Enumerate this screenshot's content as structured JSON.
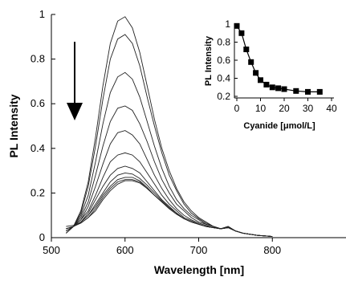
{
  "chart_data": [
    {
      "type": "line",
      "xlabel": "Wavelength [nm]",
      "ylabel": "PL Intensity",
      "xlim": [
        500,
        900
      ],
      "ylim": [
        0,
        1
      ],
      "x_ticks": [
        "500",
        "600",
        "700",
        "800"
      ],
      "y_ticks": [
        "0",
        "0.2",
        "0.4",
        "0.6",
        "0.8",
        "1"
      ],
      "annotation": "downward arrow indicating decreasing intensity with added cyanide",
      "x": [
        520,
        530,
        540,
        550,
        560,
        570,
        580,
        590,
        600,
        610,
        620,
        630,
        640,
        650,
        660,
        670,
        680,
        690,
        700,
        710,
        720,
        730,
        740,
        750,
        760,
        770,
        780,
        790,
        800
      ],
      "series": [
        {
          "values": [
            0.02,
            0.05,
            0.12,
            0.25,
            0.45,
            0.68,
            0.87,
            0.97,
            0.99,
            0.94,
            0.83,
            0.68,
            0.53,
            0.4,
            0.3,
            0.22,
            0.16,
            0.12,
            0.09,
            0.07,
            0.05,
            0.04,
            0.05,
            0.03,
            0.02,
            0.015,
            0.01,
            0.008,
            0.005
          ]
        },
        {
          "values": [
            0.02,
            0.05,
            0.11,
            0.23,
            0.41,
            0.62,
            0.8,
            0.89,
            0.91,
            0.87,
            0.77,
            0.63,
            0.5,
            0.38,
            0.28,
            0.21,
            0.15,
            0.11,
            0.085,
            0.065,
            0.05,
            0.04,
            0.05,
            0.03,
            0.02,
            0.015,
            0.01,
            0.008,
            0.005
          ]
        },
        {
          "values": [
            0.02,
            0.05,
            0.1,
            0.19,
            0.34,
            0.51,
            0.65,
            0.72,
            0.74,
            0.71,
            0.63,
            0.52,
            0.41,
            0.31,
            0.23,
            0.17,
            0.13,
            0.1,
            0.08,
            0.06,
            0.05,
            0.04,
            0.05,
            0.03,
            0.02,
            0.015,
            0.01,
            0.008,
            0.005
          ]
        },
        {
          "values": [
            0.03,
            0.05,
            0.09,
            0.16,
            0.28,
            0.41,
            0.52,
            0.58,
            0.59,
            0.57,
            0.51,
            0.43,
            0.34,
            0.26,
            0.2,
            0.15,
            0.12,
            0.09,
            0.07,
            0.06,
            0.05,
            0.04,
            0.05,
            0.03,
            0.02,
            0.015,
            0.01,
            0.008,
            0.005
          ]
        },
        {
          "values": [
            0.03,
            0.05,
            0.08,
            0.14,
            0.23,
            0.33,
            0.42,
            0.47,
            0.48,
            0.46,
            0.42,
            0.35,
            0.28,
            0.22,
            0.17,
            0.13,
            0.1,
            0.08,
            0.065,
            0.055,
            0.045,
            0.04,
            0.045,
            0.03,
            0.02,
            0.015,
            0.01,
            0.008,
            0.005
          ]
        },
        {
          "values": [
            0.03,
            0.05,
            0.08,
            0.12,
            0.19,
            0.27,
            0.34,
            0.37,
            0.38,
            0.37,
            0.34,
            0.29,
            0.24,
            0.19,
            0.15,
            0.12,
            0.09,
            0.075,
            0.06,
            0.05,
            0.045,
            0.04,
            0.045,
            0.03,
            0.02,
            0.015,
            0.01,
            0.008,
            0.005
          ]
        },
        {
          "values": [
            0.04,
            0.05,
            0.07,
            0.11,
            0.17,
            0.23,
            0.28,
            0.31,
            0.32,
            0.31,
            0.29,
            0.25,
            0.21,
            0.17,
            0.14,
            0.11,
            0.085,
            0.07,
            0.06,
            0.05,
            0.045,
            0.04,
            0.045,
            0.03,
            0.02,
            0.015,
            0.01,
            0.008,
            0.005
          ]
        },
        {
          "values": [
            0.04,
            0.05,
            0.07,
            0.1,
            0.15,
            0.2,
            0.25,
            0.28,
            0.29,
            0.285,
            0.265,
            0.235,
            0.2,
            0.165,
            0.135,
            0.11,
            0.085,
            0.07,
            0.06,
            0.05,
            0.045,
            0.04,
            0.045,
            0.03,
            0.02,
            0.015,
            0.01,
            0.008,
            0.005
          ]
        },
        {
          "values": [
            0.04,
            0.05,
            0.07,
            0.1,
            0.14,
            0.19,
            0.23,
            0.26,
            0.27,
            0.27,
            0.255,
            0.225,
            0.19,
            0.16,
            0.13,
            0.105,
            0.085,
            0.07,
            0.06,
            0.05,
            0.045,
            0.04,
            0.045,
            0.03,
            0.02,
            0.015,
            0.01,
            0.008,
            0.005
          ]
        },
        {
          "values": [
            0.04,
            0.05,
            0.065,
            0.09,
            0.13,
            0.18,
            0.22,
            0.25,
            0.26,
            0.26,
            0.25,
            0.22,
            0.19,
            0.16,
            0.13,
            0.105,
            0.085,
            0.07,
            0.06,
            0.05,
            0.045,
            0.04,
            0.045,
            0.03,
            0.02,
            0.015,
            0.01,
            0.008,
            0.005
          ]
        },
        {
          "values": [
            0.05,
            0.055,
            0.065,
            0.09,
            0.12,
            0.17,
            0.21,
            0.24,
            0.255,
            0.255,
            0.245,
            0.22,
            0.19,
            0.16,
            0.13,
            0.105,
            0.085,
            0.07,
            0.06,
            0.05,
            0.045,
            0.04,
            0.045,
            0.03,
            0.02,
            0.015,
            0.01,
            0.008,
            0.005
          ]
        }
      ]
    },
    {
      "type": "line",
      "xlabel": "Cyanide [μmol/L]",
      "ylabel": "PL Intensity",
      "xlim": [
        0,
        40
      ],
      "ylim": [
        0.2,
        1
      ],
      "x_ticks": [
        "0",
        "10",
        "20",
        "30",
        "40"
      ],
      "y_ticks": [
        "0.2",
        "0.4",
        "0.6",
        "0.8",
        "1"
      ],
      "x": [
        0,
        2,
        4,
        6,
        8,
        10,
        12.5,
        15,
        17.5,
        20,
        25,
        30,
        35
      ],
      "values": [
        0.98,
        0.9,
        0.72,
        0.58,
        0.46,
        0.38,
        0.33,
        0.3,
        0.29,
        0.28,
        0.26,
        0.25,
        0.25
      ]
    }
  ]
}
